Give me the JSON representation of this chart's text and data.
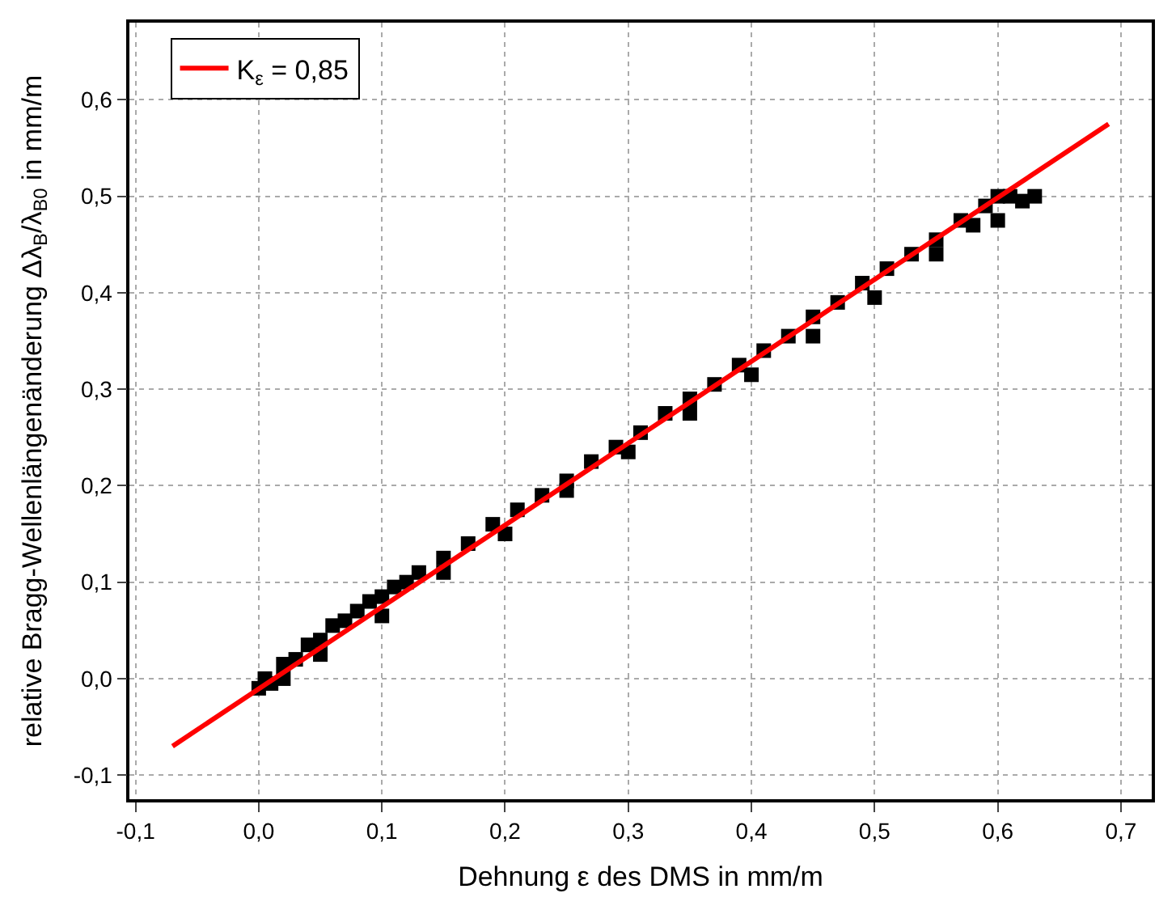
{
  "chart_data": {
    "type": "scatter",
    "xlabel": "Dehnung ε des DMS in mm/m",
    "ylabel": "relative Bragg-Wellenlängenänderung Δλ$_{B}$/λ$_{B0}$ in mm/m",
    "xlim": [
      -0.105,
      0.725
    ],
    "ylim": [
      -0.125,
      0.68
    ],
    "xticks": [
      {
        "value": -0.1,
        "label": "-0,1"
      },
      {
        "value": 0,
        "label": "0,0"
      },
      {
        "value": 0.1,
        "label": "0,1"
      },
      {
        "value": 0.2,
        "label": "0,2"
      },
      {
        "value": 0.3,
        "label": "0,3"
      },
      {
        "value": 0.4,
        "label": "0,4"
      },
      {
        "value": 0.5,
        "label": "0,5"
      },
      {
        "value": 0.6,
        "label": "0,6"
      },
      {
        "value": 0.7,
        "label": "0,7"
      }
    ],
    "yticks": [
      {
        "value": -0.1,
        "label": "-0,1"
      },
      {
        "value": 0,
        "label": "0,0"
      },
      {
        "value": 0.1,
        "label": "0,1"
      },
      {
        "value": 0.2,
        "label": "0,2"
      },
      {
        "value": 0.3,
        "label": "0,3"
      },
      {
        "value": 0.4,
        "label": "0,4"
      },
      {
        "value": 0.5,
        "label": "0,5"
      },
      {
        "value": 0.6,
        "label": "0,6"
      }
    ],
    "grid": true,
    "legend": "top left",
    "series": [
      {
        "marker": "square",
        "color": "#000000",
        "x": [
          0.0,
          0.005,
          0.01,
          0.02,
          0.03,
          0.04,
          0.05,
          0.06,
          0.07,
          0.08,
          0.09,
          0.1,
          0.11,
          0.12,
          0.13,
          0.15,
          0.17,
          0.19,
          0.21,
          0.23,
          0.25,
          0.27,
          0.29,
          0.31,
          0.33,
          0.35,
          0.37,
          0.39,
          0.41,
          0.43,
          0.45,
          0.47,
          0.49,
          0.51,
          0.53,
          0.55,
          0.57,
          0.59,
          0.6,
          0.61,
          0.62,
          0.63,
          0.02,
          0.05,
          0.1,
          0.15,
          0.2,
          0.25,
          0.3,
          0.35,
          0.4,
          0.45,
          0.5,
          0.55,
          0.58,
          0.6
        ],
        "values": [
          -0.01,
          0.0,
          -0.005,
          0.015,
          0.02,
          0.035,
          0.04,
          0.055,
          0.06,
          0.07,
          0.08,
          0.085,
          0.095,
          0.1,
          0.11,
          0.125,
          0.14,
          0.16,
          0.175,
          0.19,
          0.205,
          0.225,
          0.24,
          0.255,
          0.275,
          0.29,
          0.305,
          0.325,
          0.34,
          0.355,
          0.375,
          0.39,
          0.41,
          0.425,
          0.44,
          0.455,
          0.475,
          0.49,
          0.5,
          0.5,
          0.495,
          0.5,
          0.0,
          0.025,
          0.065,
          0.11,
          0.15,
          0.195,
          0.235,
          0.275,
          0.315,
          0.355,
          0.395,
          0.44,
          0.47,
          0.475
        ]
      },
      {
        "type": "line",
        "name": "K$_{ε}$ = 0,85",
        "color": "#ff0000",
        "x": [
          -0.07,
          0.69
        ],
        "values": [
          -0.07,
          0.575
        ]
      }
    ]
  }
}
